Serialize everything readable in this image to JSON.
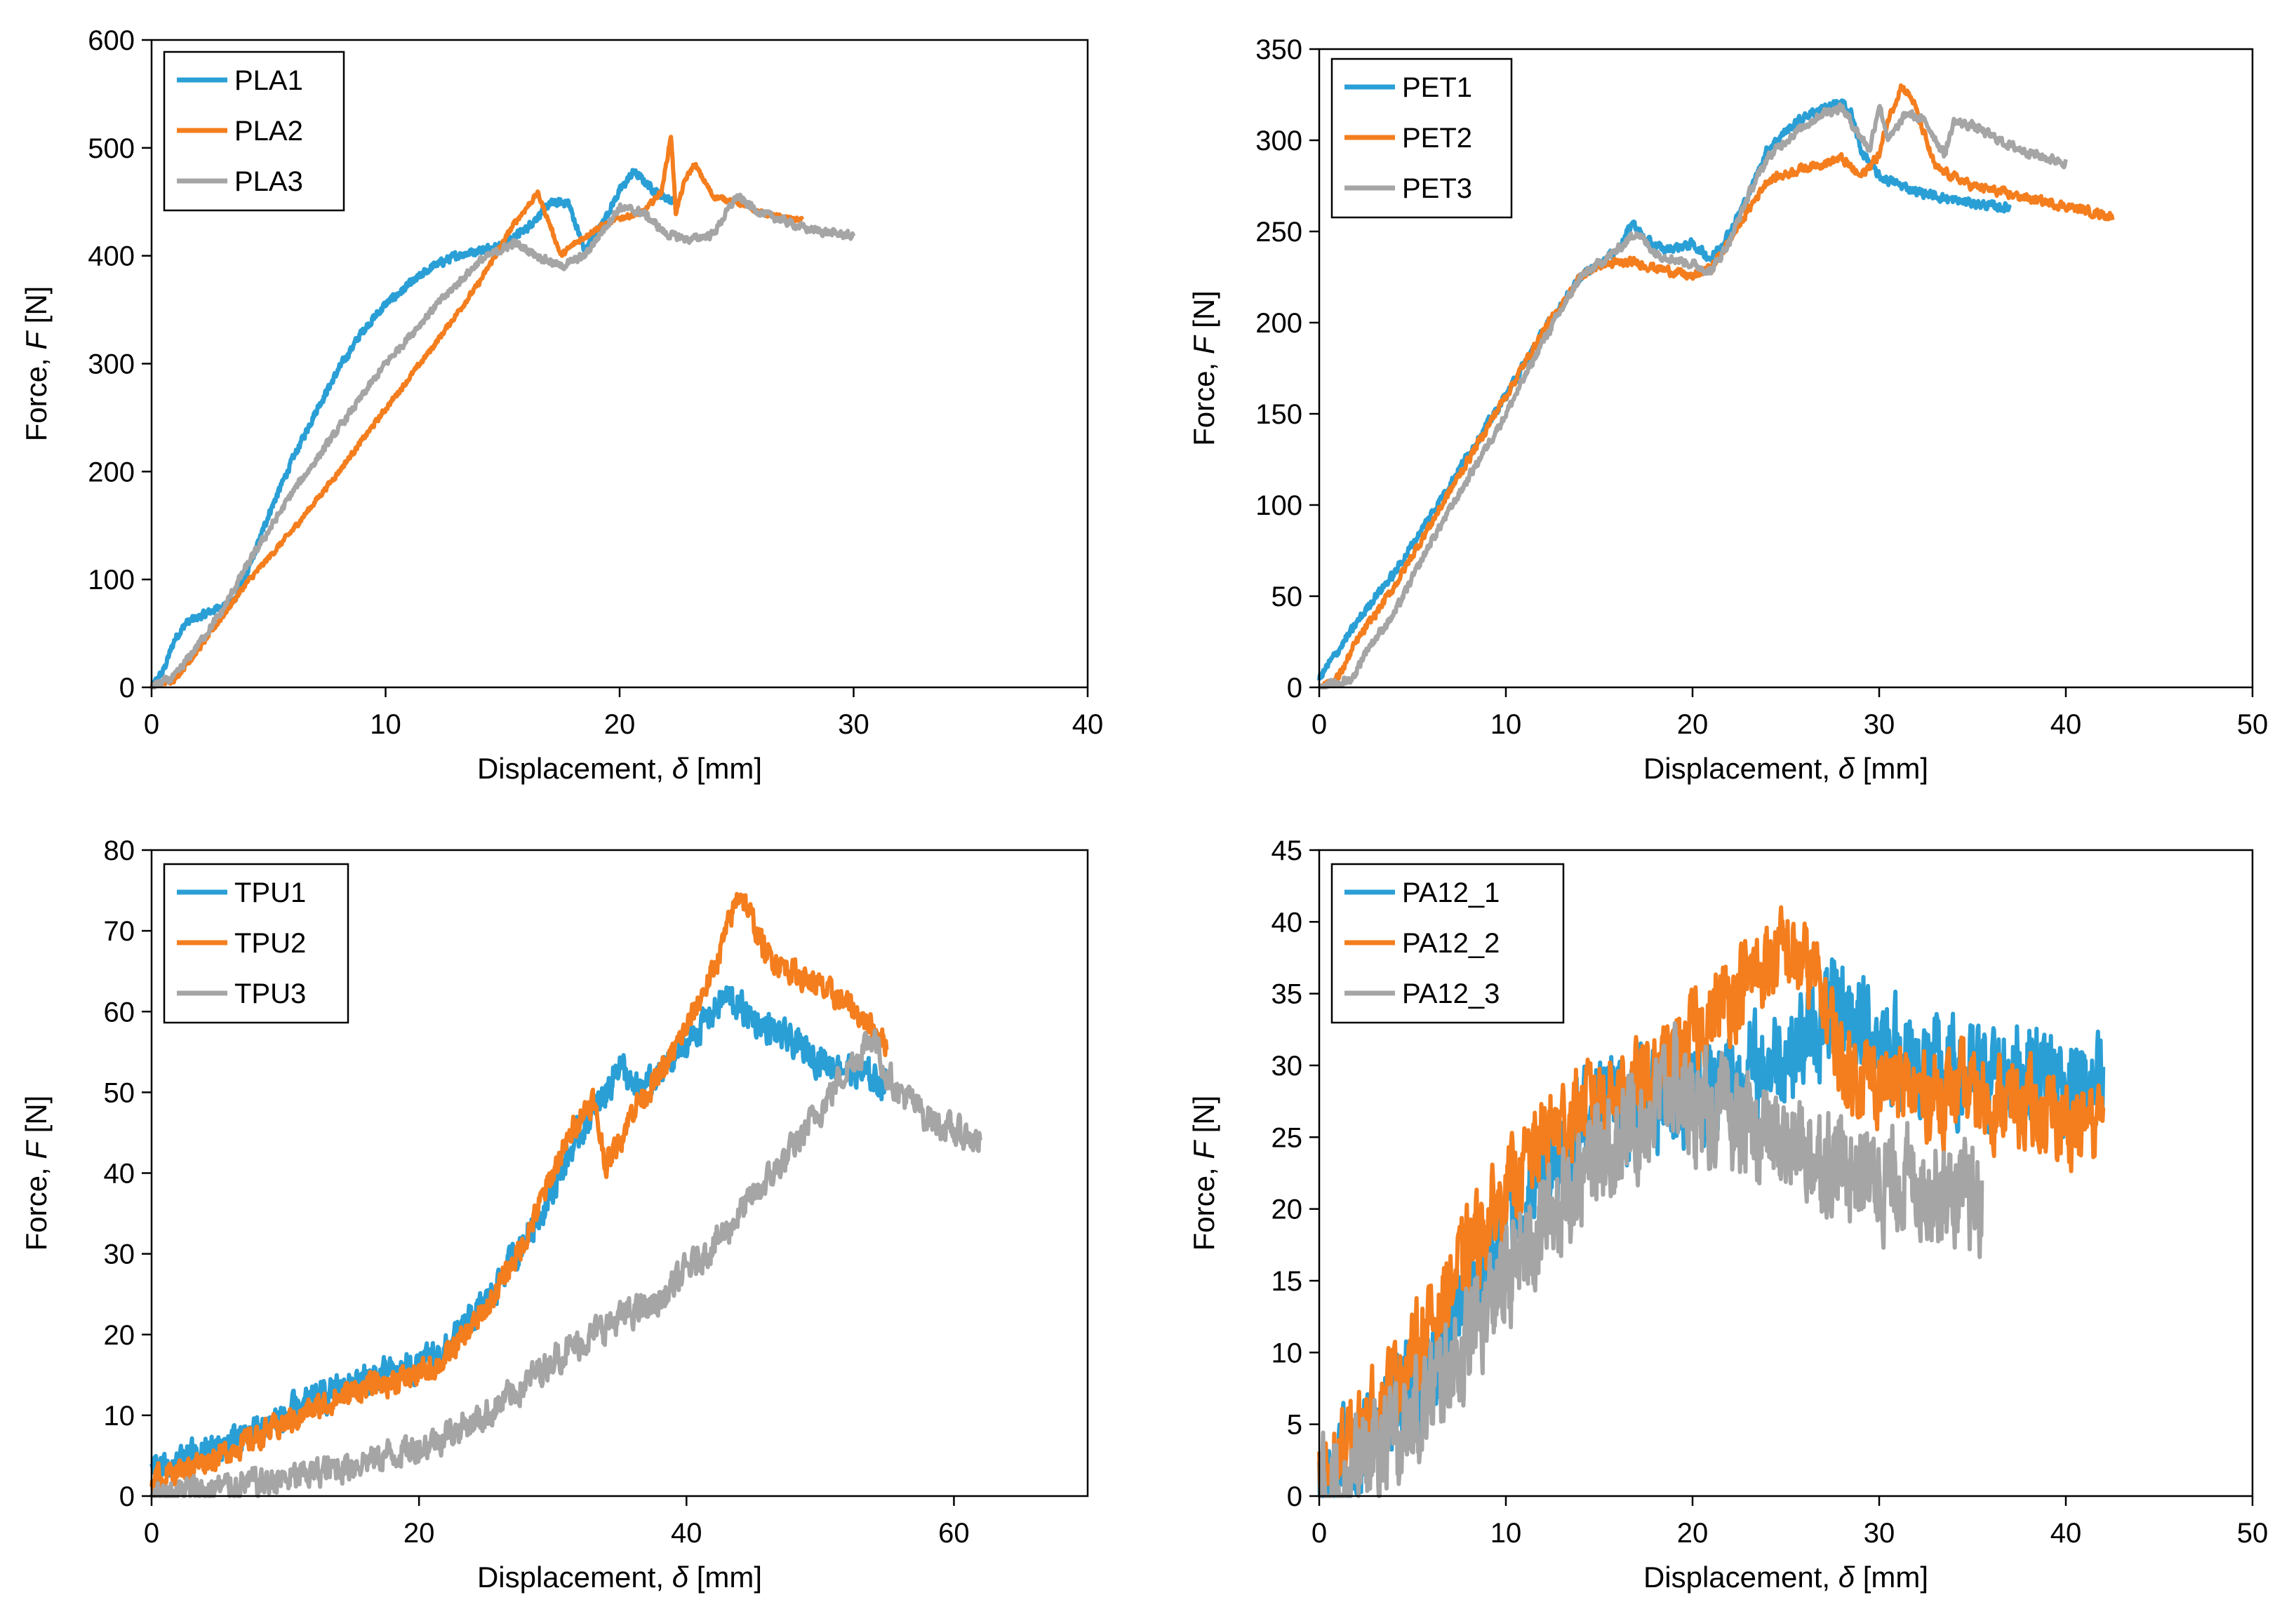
{
  "figure": {
    "colors": {
      "s1": "#2a9fd6",
      "s2": "#f47e1e",
      "s3": "#a5a5a5",
      "axis": "#000000"
    },
    "xlabel_prefix": "Displacement, ",
    "xlabel_symbol": "δ",
    "xlabel_unit": " [mm]",
    "ylabel_prefix": "Force, ",
    "ylabel_symbol": "F",
    "ylabel_unit": " [N]"
  },
  "chart_data": [
    {
      "type": "line",
      "title": "",
      "xlabel": "Displacement, δ [mm]",
      "ylabel": "Force, F [N]",
      "xlim": [
        0,
        40
      ],
      "ylim": [
        0,
        600
      ],
      "xticks": [
        0,
        10,
        20,
        30,
        40
      ],
      "yticks": [
        0,
        100,
        200,
        300,
        400,
        500,
        600
      ],
      "legend_position": "top-left",
      "series": [
        {
          "name": "PLA1",
          "x": [
            0,
            0.5,
            1,
            1.5,
            2,
            3,
            3.5,
            4,
            5,
            6,
            7,
            8,
            9,
            10,
            11,
            12,
            13,
            14,
            15,
            16,
            17,
            17.8,
            18.5,
            19,
            20,
            20.6,
            21.5,
            22.3
          ],
          "y": [
            0,
            15,
            45,
            60,
            65,
            75,
            80,
            100,
            160,
            210,
            255,
            295,
            330,
            355,
            373,
            390,
            400,
            405,
            410,
            425,
            448,
            450,
            405,
            420,
            460,
            478,
            460,
            450
          ],
          "noise": 3
        },
        {
          "name": "PLA2",
          "x": [
            0,
            1,
            2,
            3,
            4,
            6,
            8,
            10,
            12,
            14,
            15.5,
            16.5,
            17,
            17.5,
            18,
            19,
            20,
            21,
            21.8,
            22.2,
            22.4,
            22.8,
            23.2,
            24,
            25,
            26,
            27,
            27.8
          ],
          "y": [
            0,
            8,
            35,
            65,
            95,
            145,
            200,
            258,
            315,
            375,
            430,
            458,
            430,
            400,
            410,
            425,
            435,
            440,
            460,
            512,
            440,
            470,
            485,
            455,
            450,
            440,
            435,
            433
          ],
          "noise": 2
        },
        {
          "name": "PLA3",
          "x": [
            0,
            1,
            2,
            3,
            4,
            6,
            8,
            10,
            12,
            14,
            15.5,
            16.5,
            17.5,
            18.5,
            20,
            21,
            22,
            23,
            24,
            25,
            26,
            28,
            30
          ],
          "y": [
            0,
            10,
            40,
            70,
            110,
            180,
            240,
            300,
            350,
            395,
            412,
            400,
            390,
            400,
            445,
            440,
            420,
            415,
            420,
            455,
            440,
            425,
            418
          ],
          "noise": 3
        }
      ]
    },
    {
      "type": "line",
      "title": "",
      "xlabel": "Displacement, δ [mm]",
      "ylabel": "Force, F [N]",
      "xlim": [
        0,
        50
      ],
      "ylim": [
        0,
        350
      ],
      "xticks": [
        0,
        10,
        20,
        30,
        40,
        50
      ],
      "yticks": [
        0,
        50,
        100,
        150,
        200,
        250,
        300,
        350
      ],
      "legend_position": "top-left",
      "series": [
        {
          "name": "PET1",
          "x": [
            0,
            1,
            2,
            3,
            4,
            6,
            8,
            10,
            12,
            14,
            16,
            16.8,
            17.5,
            18.5,
            20,
            21,
            22,
            23,
            24,
            25,
            26,
            27,
            28,
            28.5,
            29,
            30,
            32,
            34,
            36,
            37
          ],
          "y": [
            5,
            20,
            35,
            50,
            62,
            95,
            128,
            160,
            195,
            225,
            240,
            255,
            245,
            240,
            243,
            235,
            250,
            270,
            295,
            305,
            313,
            318,
            320,
            315,
            295,
            280,
            272,
            267,
            264,
            263
          ],
          "noise": 2
        },
        {
          "name": "PET2",
          "x": [
            0,
            1,
            2,
            3,
            4,
            6,
            8,
            10,
            12,
            14,
            15,
            17,
            18,
            19,
            20,
            21,
            22,
            23,
            24,
            26,
            28,
            29,
            30,
            30.5,
            31.2,
            31.8,
            33,
            35,
            38,
            40,
            42.5
          ],
          "y": [
            0,
            5,
            25,
            40,
            55,
            90,
            125,
            160,
            195,
            225,
            232,
            233,
            230,
            228,
            225,
            230,
            245,
            262,
            278,
            285,
            290,
            280,
            292,
            312,
            330,
            322,
            285,
            275,
            268,
            264,
            258
          ],
          "noise": 2
        },
        {
          "name": "PET3",
          "x": [
            0,
            1,
            1.8,
            2.5,
            4,
            6,
            8,
            10,
            12,
            14,
            16,
            17,
            18,
            20,
            21,
            22,
            23,
            24,
            25,
            26,
            27,
            28,
            28.8,
            29.5,
            30,
            30.5,
            31.5,
            32.5,
            33.5,
            34,
            35,
            37,
            39,
            40
          ],
          "y": [
            0,
            2,
            5,
            20,
            40,
            80,
            115,
            150,
            190,
            225,
            240,
            250,
            238,
            232,
            228,
            245,
            270,
            290,
            300,
            308,
            315,
            318,
            305,
            295,
            320,
            300,
            315,
            310,
            292,
            310,
            308,
            297,
            290,
            288
          ],
          "noise": 2
        }
      ]
    },
    {
      "type": "line",
      "title": "",
      "xlabel": "Displacement, δ [mm]",
      "ylabel": "Force, F [N]",
      "xlim": [
        0,
        70
      ],
      "ylim": [
        0,
        80
      ],
      "xticks": [
        0,
        20,
        40,
        60
      ],
      "yticks": [
        0,
        10,
        20,
        30,
        40,
        50,
        60,
        70,
        80
      ],
      "legend_position": "top-left",
      "series": [
        {
          "name": "TPU1",
          "x": [
            0,
            5,
            10,
            15,
            20,
            22,
            25,
            28,
            30,
            32,
            34,
            35,
            36,
            38,
            40,
            42,
            43,
            45,
            48,
            50,
            52,
            55
          ],
          "y": [
            3,
            6,
            10,
            14,
            16,
            18,
            24,
            32,
            38,
            45,
            50,
            54,
            50,
            52,
            56,
            60,
            62,
            59,
            56,
            54,
            53,
            51
          ],
          "noise": 1.6
        },
        {
          "name": "TPU2",
          "x": [
            0,
            5,
            10,
            15,
            20,
            22,
            25,
            28,
            30,
            32,
            33,
            34,
            35,
            36,
            38,
            40,
            42,
            43,
            44,
            45,
            46,
            48,
            50,
            52,
            54,
            55
          ],
          "y": [
            2,
            5,
            9,
            13,
            15,
            17,
            23,
            32,
            40,
            47,
            49,
            41,
            44,
            48,
            52,
            58,
            65,
            70,
            75,
            71,
            67,
            65,
            63,
            61,
            58,
            56
          ],
          "noise": 1.3
        },
        {
          "name": "TPU3",
          "x": [
            0,
            5,
            10,
            15,
            20,
            25,
            28,
            30,
            35,
            38,
            40,
            42,
            45,
            48,
            50,
            52,
            53,
            54,
            55,
            56,
            58,
            60,
            62
          ],
          "y": [
            0,
            1,
            2,
            4,
            6,
            10,
            14,
            17,
            22,
            24,
            28,
            31,
            37,
            43,
            48,
            53,
            55,
            57,
            52,
            50,
            47,
            45,
            44
          ],
          "noise": 1.6
        }
      ]
    },
    {
      "type": "line",
      "title": "",
      "xlabel": "Displacement, δ [mm]",
      "ylabel": "Force, F [N]",
      "xlim": [
        0,
        50
      ],
      "ylim": [
        0,
        45
      ],
      "xticks": [
        0,
        10,
        20,
        30,
        40,
        50
      ],
      "yticks": [
        0,
        5,
        10,
        15,
        20,
        25,
        30,
        35,
        40,
        45
      ],
      "legend_position": "top-left",
      "series": [
        {
          "name": "PA12_1",
          "x": [
            0,
            2,
            4,
            6,
            8,
            10,
            12,
            15,
            18,
            20,
            22,
            24,
            26,
            27,
            28,
            30,
            32,
            35,
            38,
            40,
            42
          ],
          "y": [
            0,
            3,
            6,
            9,
            14,
            19,
            23,
            27,
            28,
            28,
            29,
            30,
            32,
            33,
            34,
            32,
            30,
            29,
            30,
            29,
            28
          ],
          "noise": 3
        },
        {
          "name": "PA12_2",
          "x": [
            0,
            2,
            4,
            6,
            8,
            10,
            12,
            15,
            18,
            20,
            22,
            24,
            25,
            26,
            27,
            28,
            30,
            32,
            35,
            38,
            40,
            42
          ],
          "y": [
            1,
            4,
            8,
            12,
            17,
            21,
            25,
            28,
            29,
            32,
            35,
            37,
            38,
            37,
            35,
            30,
            29,
            28,
            28,
            27,
            26,
            26
          ],
          "noise": 2.5
        },
        {
          "name": "PA12_3",
          "x": [
            0,
            2,
            4,
            6,
            8,
            10,
            12,
            15,
            18,
            19,
            20,
            22,
            24,
            26,
            28,
            30,
            32,
            34,
            35.5
          ],
          "y": [
            0,
            2,
            4,
            7,
            11,
            15,
            19,
            24,
            27,
            29,
            27,
            26,
            25,
            24,
            23,
            22,
            22,
            21,
            20
          ],
          "noise": 3
        }
      ]
    }
  ]
}
